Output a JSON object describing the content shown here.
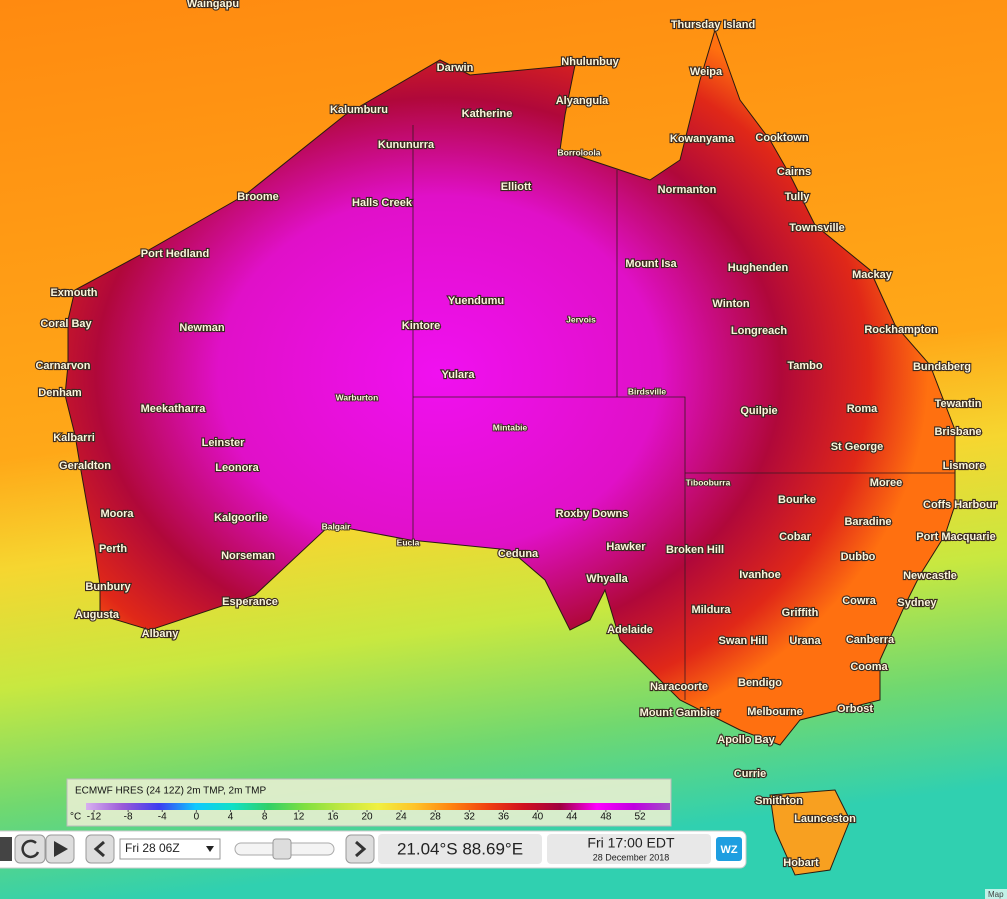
{
  "map": {
    "places": [
      "Waingapu",
      "Thursday Island",
      "Darwin",
      "Nhulunbuy",
      "Weipa",
      "Kalumburu",
      "Katherine",
      "Alyangula",
      "Kununurra",
      "Borroloola",
      "Kowanyama",
      "Cooktown",
      "Broome",
      "Halls Creek",
      "Elliott",
      "Normanton",
      "Cairns",
      "Tully",
      "Townsville",
      "Port Hedland",
      "Mount Isa",
      "Hughenden",
      "Mackay",
      "Exmouth",
      "Yuendumu",
      "Winton",
      "Coral Bay",
      "Newman",
      "Kintore",
      "Jervois",
      "Longreach",
      "Rockhampton",
      "Carnarvon",
      "Yulara",
      "Tambo",
      "Bundaberg",
      "Denham",
      "Warburton",
      "Birdsville",
      "Meekatharra",
      "Quilpie",
      "Roma",
      "Tewantin",
      "Kalbarri",
      "Leinster",
      "Mintabie",
      "St George",
      "Brisbane",
      "Geraldton",
      "Leonora",
      "Lismore",
      "Tibooburra",
      "Moree",
      "Bourke",
      "Coffs Harbour",
      "Moora",
      "Kalgoorlie",
      "Balgair",
      "Roxby Downs",
      "Baradine",
      "Cobar",
      "Port Macquarie",
      "Eucla",
      "Ceduna",
      "Hawker",
      "Broken Hill",
      "Perth",
      "Norseman",
      "Dubbo",
      "Ivanhoe",
      "Newcastle",
      "Whyalla",
      "Bunbury",
      "Cowra",
      "Sydney",
      "Esperance",
      "Mildura",
      "Griffith",
      "Augusta",
      "Adelaide",
      "Albany",
      "Swan Hill",
      "Urana",
      "Canberra",
      "Cooma",
      "Naracoorte",
      "Bendigo",
      "Mount Gambier",
      "Melbourne",
      "Orbost",
      "Apollo Bay",
      "Currie",
      "Smithton",
      "Launceston",
      "Hobart"
    ],
    "attribution": "Map"
  },
  "legend": {
    "title": "ECMWF HRES (24 12Z) 2m TMP, 2m TMP",
    "unit": "°C",
    "ticks": [
      -12,
      -8,
      -4,
      0,
      4,
      8,
      12,
      16,
      20,
      24,
      28,
      32,
      36,
      40,
      44,
      48,
      52
    ],
    "colors": [
      "#d8b0f0",
      "#9a5ad8",
      "#3c3cf0",
      "#10c8ff",
      "#10e0c8",
      "#30d068",
      "#80e040",
      "#c0e840",
      "#f0f040",
      "#ffc428",
      "#ff8410",
      "#f04010",
      "#d01020",
      "#a00040",
      "#ff00ff",
      "#c000e0",
      "#a050c8"
    ]
  },
  "controls": {
    "time_select": "Fri 28 06Z",
    "coordinates": "21.04°S 88.69°E",
    "local_time": "Fri 17:00 EDT",
    "date": "28 December 2018",
    "logo": "WZ"
  }
}
